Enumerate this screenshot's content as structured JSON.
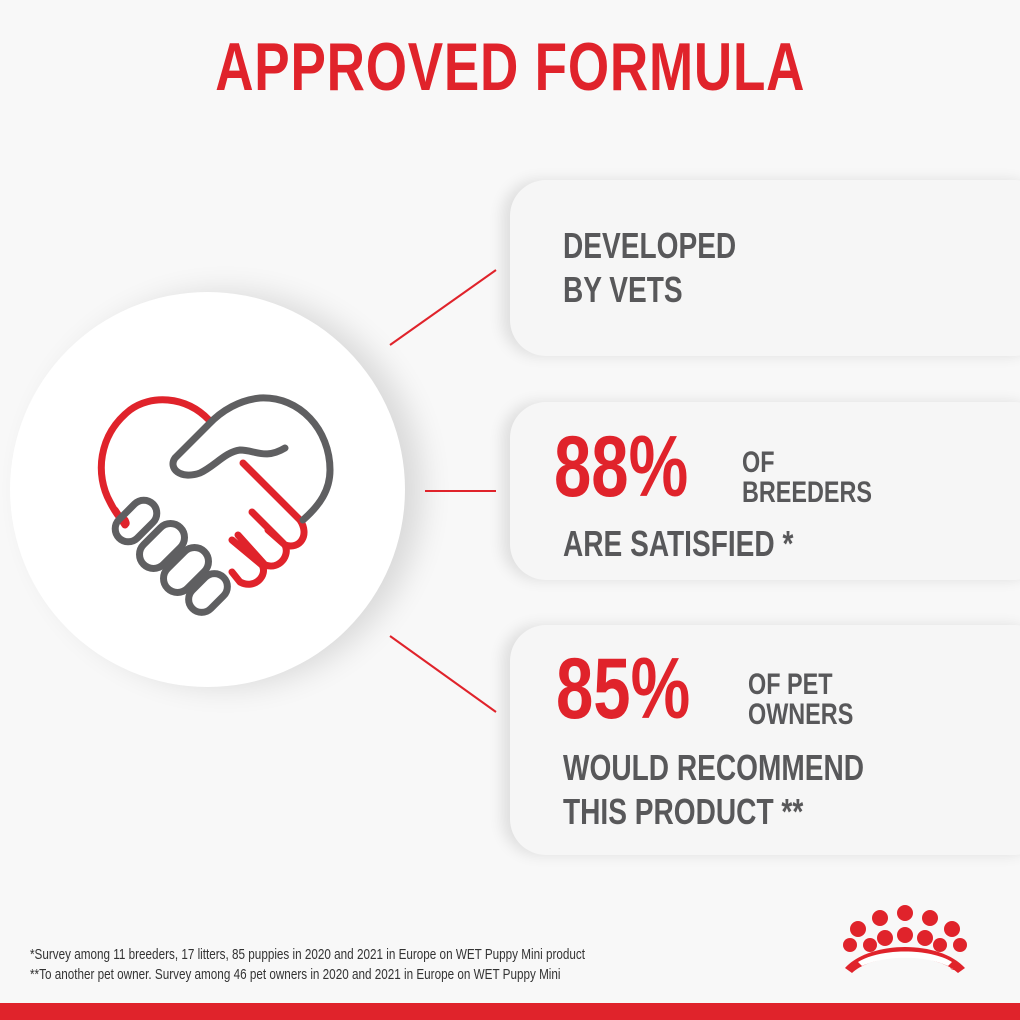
{
  "title": "APPROVED FORMULA",
  "items": [
    {
      "lines": [
        "DEVELOPED",
        "BY VETS"
      ]
    },
    {
      "percent": "88%",
      "side": [
        "OF",
        "BREEDERS"
      ],
      "lines": [
        "ARE SATISFIED *"
      ]
    },
    {
      "percent": "85%",
      "side": [
        "OF PET",
        "OWNERS"
      ],
      "lines": [
        "WOULD RECOMMEND",
        "THIS PRODUCT **"
      ]
    }
  ],
  "footnotes": [
    "*Survey among 11 breeders, 17 litters, 85 puppies in 2020 and 2021 in Europe on WET Puppy Mini product",
    "**To another pet owner. Survey among 46 pet owners in 2020 and 2021 in Europe on WET Puppy Mini"
  ],
  "logo": {
    "name": "crown-logo",
    "mark": "®"
  },
  "colors": {
    "accent": "#e0232b",
    "text": "#58585a"
  },
  "icons": [
    "handshake-heart-icon",
    "crown-logo-icon"
  ]
}
